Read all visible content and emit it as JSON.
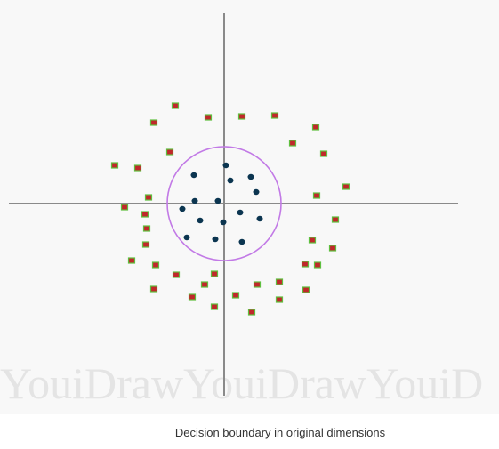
{
  "figure": {
    "watermark": "YouiDrawYouiDrawYouiD",
    "caption": "Decision boundary in original dimensions"
  }
}
